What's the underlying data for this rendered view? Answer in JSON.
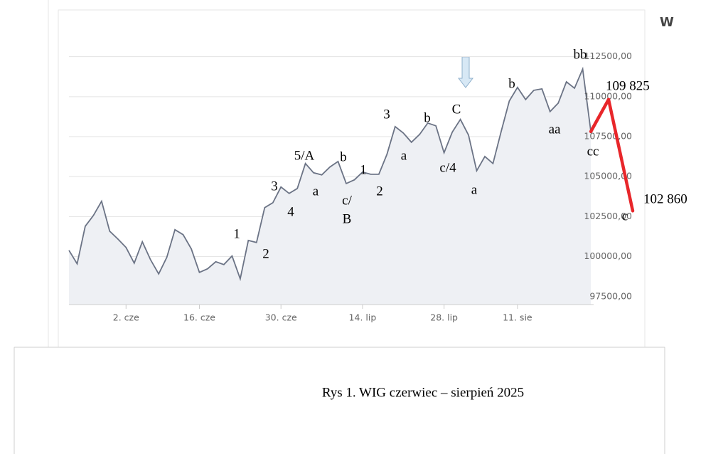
{
  "chart_data": {
    "type": "line",
    "categories": [
      null,
      null,
      null,
      null,
      null,
      null,
      null,
      "2. cze",
      null,
      null,
      null,
      null,
      null,
      null,
      null,
      null,
      "16. cze",
      null,
      null,
      null,
      null,
      null,
      null,
      null,
      null,
      null,
      "30. cze",
      null,
      null,
      null,
      null,
      null,
      null,
      null,
      null,
      null,
      "14. lip",
      null,
      null,
      null,
      null,
      null,
      null,
      null,
      null,
      null,
      "28. lip",
      null,
      null,
      null,
      null,
      null,
      null,
      null,
      null,
      "11. sie",
      null,
      null,
      null,
      null,
      null,
      null,
      null,
      null,
      null
    ],
    "values": [
      100390,
      99550,
      101900,
      102570,
      103460,
      101590,
      101100,
      100570,
      99590,
      100930,
      99810,
      98920,
      99950,
      101680,
      101370,
      100480,
      99010,
      99240,
      99680,
      99500,
      100040,
      98610,
      101010,
      100880,
      103060,
      103370,
      104350,
      103950,
      104260,
      105820,
      105240,
      105110,
      105600,
      105950,
      104570,
      104800,
      105280,
      105150,
      105150,
      106400,
      108130,
      107730,
      107150,
      107640,
      108350,
      108180,
      106490,
      107780,
      108580,
      107600,
      105370,
      106260,
      105820,
      107820,
      109730,
      110580,
      109820,
      110400,
      110490,
      109070,
      109600,
      110930,
      110530,
      111730,
      107820
    ],
    "color": "#6b7385",
    "area_color": "#eef0f4",
    "ylim": [
      97000,
      114800
    ],
    "yticks": [
      {
        "value": 97500,
        "label": "97500,00"
      },
      {
        "value": 100000,
        "label": "100000,00"
      },
      {
        "value": 102500,
        "label": "102500,00"
      },
      {
        "value": 105000,
        "label": "105000,00"
      },
      {
        "value": 107500,
        "label": "107500,00"
      },
      {
        "value": 110000,
        "label": "110000,00"
      },
      {
        "value": 112500,
        "label": "112500,00"
      }
    ],
    "grid": true,
    "forecast": {
      "color": "#e8262a",
      "values": [
        109825,
        102860
      ],
      "value_labels": [
        "109 825",
        "102 860"
      ]
    },
    "annotations": [
      "1",
      "2",
      "3",
      "4",
      "5/A",
      "a",
      "b",
      "c/",
      "B",
      "1",
      "2",
      "3",
      "a",
      "b",
      "C",
      "c/4",
      "a",
      "b",
      "aa",
      "bb",
      "cc",
      "c"
    ]
  },
  "header_fragment": "W",
  "caption": "Rys 1. WIG czerwiec – sierpień 2025"
}
